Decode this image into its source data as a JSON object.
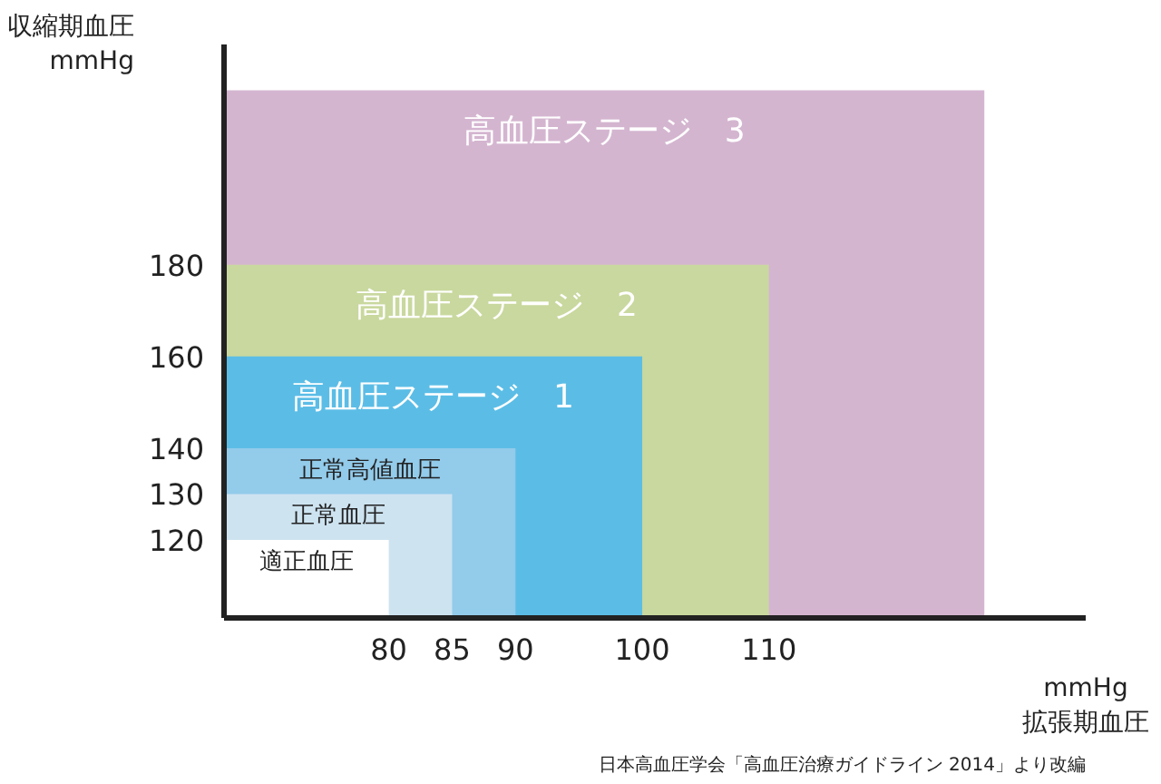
{
  "chart_data": {
    "type": "area",
    "xlabel": "mmHg\n拡張期血圧",
    "ylabel": "収縮期血圧\nmmHg",
    "xlim": [
      67,
      135
    ],
    "ylim": [
      103,
      228
    ],
    "xticks": [
      80,
      85,
      90,
      100,
      110
    ],
    "yticks": [
      120,
      130,
      140,
      160,
      180
    ],
    "series": [
      {
        "name": "高血圧ステージ　3",
        "color": "#d4b5d0",
        "x": [
          67,
          127
        ],
        "values": [
          218,
          218
        ]
      },
      {
        "name": "高血圧ステージ　2",
        "color": "#c9d89e",
        "x": [
          67,
          110
        ],
        "values": [
          180,
          180
        ]
      },
      {
        "name": "高血圧ステージ　1",
        "color": "#5bbde6",
        "x": [
          67,
          100
        ],
        "values": [
          160,
          160
        ]
      },
      {
        "name": "正常高値血圧",
        "color": "#93cbea",
        "x": [
          67,
          90
        ],
        "values": [
          140,
          140
        ]
      },
      {
        "name": "正常血圧",
        "color": "#cde3f0",
        "x": [
          67,
          85
        ],
        "values": [
          130,
          130
        ]
      },
      {
        "name": "適正血圧",
        "color": "#ffffff",
        "x": [
          67,
          80
        ],
        "values": [
          120,
          120
        ]
      }
    ],
    "annotations": [
      "日本高血圧学会「高血圧治療ガイドライン 2014」より改編"
    ]
  }
}
